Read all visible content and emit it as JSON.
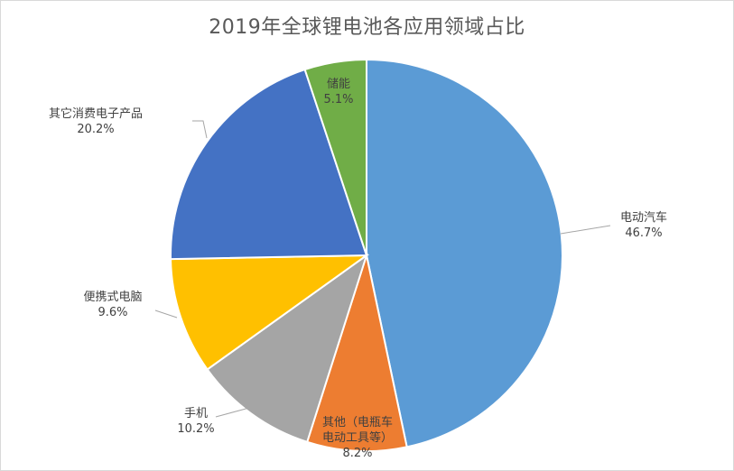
{
  "chart_data": {
    "type": "pie",
    "title": "2019年全球锂电池各应用领域占比",
    "start_angle_deg": 0,
    "direction": "clockwise",
    "slices": [
      {
        "label": "电动汽车",
        "label_lines": [
          "电动汽车"
        ],
        "value": 46.7,
        "value_text": "46.7%",
        "color": "#5B9BD5"
      },
      {
        "label": "其他（电瓶车电动工具等）",
        "label_lines": [
          "其他（电瓶车",
          "电动工具等）"
        ],
        "value": 8.2,
        "value_text": "8.2%",
        "color": "#ED7D31"
      },
      {
        "label": "手机",
        "label_lines": [
          "手机"
        ],
        "value": 10.2,
        "value_text": "10.2%",
        "color": "#A5A5A5"
      },
      {
        "label": "便携式电脑",
        "label_lines": [
          "便携式电脑"
        ],
        "value": 9.6,
        "value_text": "9.6%",
        "color": "#FFC000"
      },
      {
        "label": "其它消费电子产品",
        "label_lines": [
          "其它消费电子产品"
        ],
        "value": 20.2,
        "value_text": "20.2%",
        "color": "#4472C4"
      },
      {
        "label": "储能",
        "label_lines": [
          "储能"
        ],
        "value": 5.1,
        "value_text": "5.1%",
        "color": "#70AD47"
      }
    ]
  }
}
